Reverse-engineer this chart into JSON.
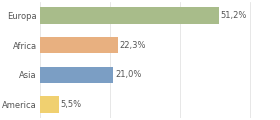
{
  "categories": [
    "America",
    "Asia",
    "Africa",
    "Europa"
  ],
  "values": [
    5.5,
    21.0,
    22.3,
    51.2
  ],
  "labels": [
    "5,5%",
    "21,0%",
    "22,3%",
    "51,2%"
  ],
  "bar_colors": [
    "#f0d070",
    "#7b9ec4",
    "#e8b080",
    "#a8bc8a"
  ],
  "xlim": [
    0,
    68
  ],
  "background_color": "#ffffff",
  "text_color": "#555555",
  "label_fontsize": 6.0,
  "tick_fontsize": 6.0,
  "bar_height": 0.55
}
